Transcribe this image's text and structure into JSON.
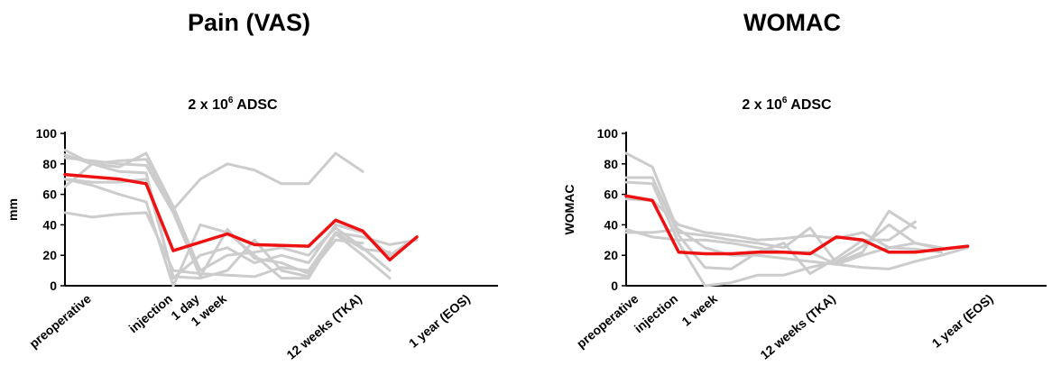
{
  "titles": {
    "left": "Pain (VAS)",
    "right": "WOMAC"
  },
  "colors": {
    "individual": "#cccccc",
    "mean": "#ee1111",
    "axis": "#000000"
  },
  "chart_data": [
    {
      "type": "line",
      "title": "Pain (VAS)",
      "subtitle_base": "2 x 10",
      "subtitle_exp": "6",
      "subtitle_rest": " ADSC",
      "ylabel": "mm",
      "ylim": [
        0,
        100
      ],
      "yticks": [
        0,
        20,
        40,
        60,
        80,
        100
      ],
      "xlim": [
        0,
        16
      ],
      "x_label_positions": [
        1,
        4,
        5,
        6,
        11,
        15
      ],
      "x_tick_labels": [
        "preoperative",
        "injection",
        "1 day",
        "1 week",
        "12 weeks (TKA)",
        "1 year (EOS)"
      ],
      "series": [
        {
          "x": [
            0,
            1,
            2,
            3,
            4,
            5,
            6,
            7,
            8,
            9,
            10,
            11,
            12,
            13
          ],
          "y": [
            65,
            80,
            82,
            83,
            50,
            70,
            80,
            76,
            67,
            67,
            87,
            75,
            null,
            null
          ]
        },
        {
          "x": [
            0,
            1,
            2,
            3,
            4,
            5,
            6,
            7,
            8,
            9,
            10,
            11,
            12,
            13
          ],
          "y": [
            89,
            80,
            78,
            87,
            52,
            10,
            20,
            22,
            25,
            20,
            38,
            25,
            10,
            null
          ]
        },
        {
          "x": [
            0,
            1,
            2,
            3,
            4,
            5,
            6,
            7,
            8,
            9,
            10,
            11,
            12,
            13
          ],
          "y": [
            84,
            82,
            80,
            79,
            48,
            6,
            37,
            18,
            15,
            8,
            30,
            28,
            null,
            null
          ]
        },
        {
          "x": [
            0,
            1,
            2,
            3,
            4,
            5,
            6,
            7,
            8,
            9,
            10,
            11,
            12,
            13
          ],
          "y": [
            70,
            66,
            60,
            55,
            0,
            40,
            35,
            20,
            5,
            5,
            34,
            20,
            5,
            null
          ]
        },
        {
          "x": [
            0,
            1,
            2,
            3,
            4,
            5,
            6,
            7,
            8,
            9,
            10,
            11,
            12,
            13
          ],
          "y": [
            48,
            45,
            47,
            48,
            10,
            8,
            7,
            6,
            12,
            10,
            35,
            24,
            22,
            null
          ]
        },
        {
          "x": [
            0,
            1,
            2,
            3,
            4,
            5,
            6,
            7,
            8,
            9,
            10,
            11,
            12,
            13
          ],
          "y": [
            70,
            68,
            68,
            70,
            6,
            5,
            10,
            30,
            10,
            6,
            35,
            32,
            27,
            30
          ]
        },
        {
          "x": [
            0,
            1,
            2,
            3,
            4,
            5,
            6,
            7,
            8,
            9,
            10,
            11,
            12,
            13
          ],
          "y": [
            86,
            80,
            75,
            74,
            5,
            20,
            25,
            15,
            20,
            15,
            40,
            35,
            20,
            32
          ]
        }
      ],
      "mean": {
        "x": [
          0,
          2,
          3,
          4,
          6,
          7,
          9,
          10,
          11,
          12,
          13
        ],
        "y": [
          73,
          70,
          67,
          23,
          34,
          27,
          26,
          43,
          36,
          17,
          32
        ]
      }
    },
    {
      "type": "line",
      "title": "WOMAC",
      "subtitle_base": "2 x 10",
      "subtitle_exp": "6",
      "subtitle_rest": " ADSC",
      "ylabel": "WOMAC",
      "ylim": [
        0,
        100
      ],
      "yticks": [
        0,
        20,
        40,
        60,
        80,
        100
      ],
      "xlim": [
        0,
        16
      ],
      "x_label_positions": [
        0.5,
        2,
        3.5,
        8,
        14
      ],
      "x_tick_labels": [
        "preoperative",
        "injection",
        "1 week",
        "12 weeks (TKA)",
        "1 year (EOS)"
      ],
      "series": [
        {
          "x": [
            0,
            1,
            2,
            3,
            4,
            5,
            6,
            7,
            8,
            9,
            10,
            11,
            12,
            13
          ],
          "y": [
            87,
            78,
            35,
            33,
            30,
            28,
            25,
            38,
            15,
            22,
            49,
            38,
            null,
            null
          ]
        },
        {
          "x": [
            0,
            1,
            2,
            3,
            4,
            5,
            6,
            7,
            8,
            9,
            10,
            11,
            12,
            13
          ],
          "y": [
            71,
            71,
            33,
            12,
            11,
            22,
            28,
            8,
            18,
            30,
            30,
            42,
            null,
            null
          ]
        },
        {
          "x": [
            0,
            1,
            2,
            3,
            4,
            5,
            6,
            7,
            8,
            9,
            10,
            11,
            12,
            13
          ],
          "y": [
            68,
            67,
            28,
            0,
            2,
            7,
            7,
            12,
            16,
            26,
            40,
            28,
            24,
            null
          ]
        },
        {
          "x": [
            0,
            1,
            2,
            3,
            4,
            5,
            6,
            7,
            8,
            9,
            10,
            11,
            12,
            13
          ],
          "y": [
            57,
            56,
            40,
            35,
            33,
            30,
            31,
            33,
            31,
            35,
            25,
            28,
            25,
            null
          ]
        },
        {
          "x": [
            0,
            1,
            2,
            3,
            4,
            5,
            6,
            7,
            8,
            9,
            10,
            11,
            12,
            13
          ],
          "y": [
            37,
            32,
            30,
            30,
            28,
            25,
            22,
            22,
            14,
            12,
            11,
            16,
            20,
            25
          ]
        },
        {
          "x": [
            0,
            1,
            2,
            3,
            4,
            5,
            6,
            7,
            8,
            9,
            10,
            11,
            12,
            13
          ],
          "y": [
            35,
            35,
            37,
            25,
            20,
            20,
            18,
            16,
            14,
            20,
            25,
            24,
            22,
            null
          ]
        }
      ],
      "mean": {
        "x": [
          0,
          1,
          2,
          3,
          4,
          5,
          6,
          7,
          8,
          9,
          10,
          11,
          12,
          13
        ],
        "y": [
          59,
          56,
          22,
          21,
          21,
          22,
          22,
          21,
          32,
          30,
          22,
          22,
          24,
          26
        ]
      }
    }
  ]
}
